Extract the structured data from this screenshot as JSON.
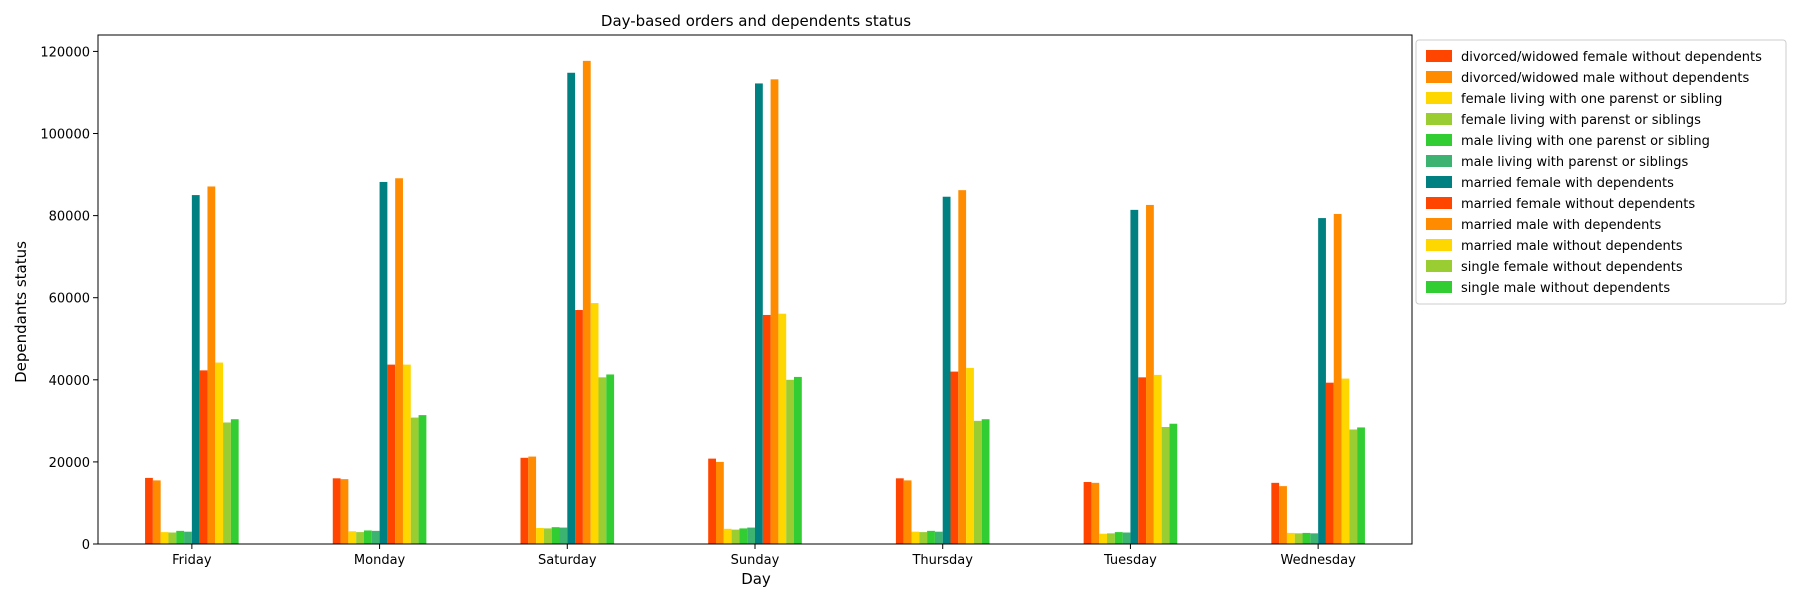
{
  "chart_data": {
    "type": "bar",
    "title": "Day-based orders and dependents status",
    "xlabel": "Day",
    "ylabel": "Dependants status",
    "ylim": [
      0,
      124000
    ],
    "yticks": [
      0,
      20000,
      40000,
      60000,
      80000,
      100000,
      120000
    ],
    "grid": false,
    "legend_position": "outside-top-right",
    "categories": [
      "Friday",
      "Monday",
      "Saturday",
      "Sunday",
      "Thursday",
      "Tuesday",
      "Wednesday"
    ],
    "series": [
      {
        "name": "divorced/widowed female without dependents",
        "color": "#FF4500",
        "values": [
          16100,
          16000,
          21000,
          20800,
          16000,
          15100,
          14900
        ]
      },
      {
        "name": "divorced/widowed male without dependents",
        "color": "#FF8C00",
        "values": [
          15500,
          15800,
          21300,
          20000,
          15500,
          14900,
          14100
        ]
      },
      {
        "name": "female living with one parenst or sibling",
        "color": "#FFD700",
        "values": [
          2900,
          3100,
          3900,
          3700,
          3000,
          2500,
          2700
        ]
      },
      {
        "name": "female living with parenst or siblings",
        "color": "#9ACD32",
        "values": [
          2800,
          2900,
          3800,
          3500,
          2900,
          2600,
          2600
        ]
      },
      {
        "name": "male living with one parenst or sibling",
        "color": "#32CD32",
        "values": [
          3200,
          3300,
          4100,
          3800,
          3200,
          2900,
          2700
        ]
      },
      {
        "name": "male living with parenst or siblings",
        "color": "#3CB371",
        "values": [
          3000,
          3200,
          4000,
          4000,
          3000,
          2800,
          2600
        ]
      },
      {
        "name": "married female with dependents",
        "color": "#008080",
        "values": [
          85000,
          88200,
          114800,
          112200,
          84600,
          81400,
          79400
        ]
      },
      {
        "name": "married female without dependents",
        "color": "#FF4500",
        "values": [
          42300,
          43700,
          57000,
          55800,
          42000,
          40600,
          39300
        ]
      },
      {
        "name": "married male with dependents",
        "color": "#FF8C00",
        "values": [
          87100,
          89100,
          117700,
          113200,
          86200,
          82600,
          80400
        ]
      },
      {
        "name": "married male without dependents",
        "color": "#FFD700",
        "values": [
          44200,
          43700,
          58700,
          56100,
          42900,
          41200,
          40300
        ]
      },
      {
        "name": "single female without dependents",
        "color": "#9ACD32",
        "values": [
          29600,
          30800,
          40600,
          40000,
          30000,
          28500,
          27900
        ]
      },
      {
        "name": "single male without dependents",
        "color": "#32CD32",
        "values": [
          30400,
          31400,
          41300,
          40700,
          30400,
          29300,
          28400
        ]
      }
    ]
  }
}
